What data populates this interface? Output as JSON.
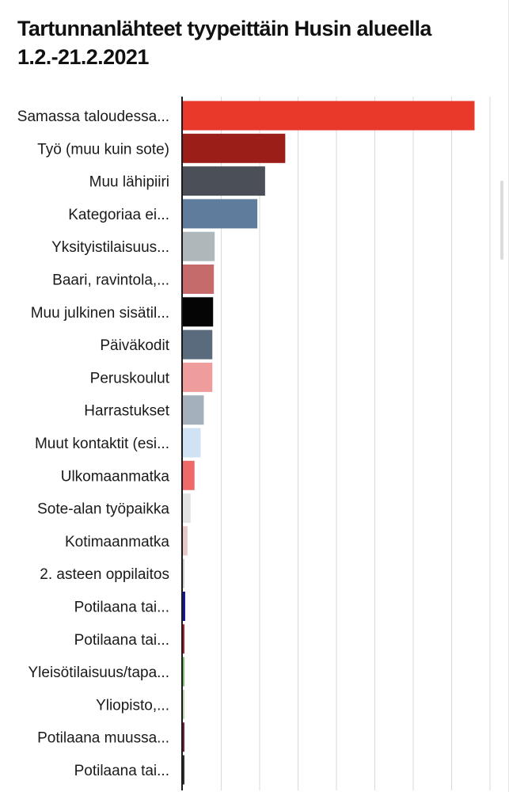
{
  "chart_data": {
    "type": "bar",
    "orientation": "horizontal",
    "title": "Tartunnanlähteet tyypeittäin Husin alueella 1.2.-21.2.2021",
    "xlabel": "",
    "ylabel": "",
    "xlim": [
      0,
      400
    ],
    "grid": true,
    "legend": "none",
    "categories": [
      "Samassa taloudessa...",
      "Työ (muu kuin sote)",
      "Muu lähipiiri",
      "Kategoriaa ei...",
      "Yksityistilaisuus...",
      "Baari, ravintola,...",
      "Muu julkinen sisätil...",
      "Päiväkodit",
      "Peruskoulut",
      "Harrastukset",
      "Muut kontaktit (esi...",
      "Ulkomaanmatka",
      "Sote-alan työpaikka",
      "Kotimaanmatka",
      "2. asteen oppilaitos",
      "Potilaana tai...",
      "Potilaana tai...",
      "Yleisötilaisuus/tapa...",
      "Yliopisto,...",
      "Potilaana muussa...",
      "Potilaana tai..."
    ],
    "values": [
      376,
      132,
      106,
      96,
      41,
      40,
      39,
      38,
      38,
      27,
      23,
      15,
      10,
      6,
      2,
      3,
      2,
      2,
      1,
      2,
      1
    ],
    "colors": [
      "#e8392b",
      "#9b1e18",
      "#4b4f58",
      "#5f7c9c",
      "#aeb8bb",
      "#c56b6b",
      "#050505",
      "#5a6b7d",
      "#ef9c9c",
      "#a4b0bc",
      "#cfe3f5",
      "#ee6a6a",
      "#e3e3e3",
      "#e7c8c8",
      "#cfcfcf",
      "#14148c",
      "#b0202a",
      "#7fc06a",
      "#b7d8a0",
      "#7a1f3a",
      "#2e2e2e"
    ]
  }
}
